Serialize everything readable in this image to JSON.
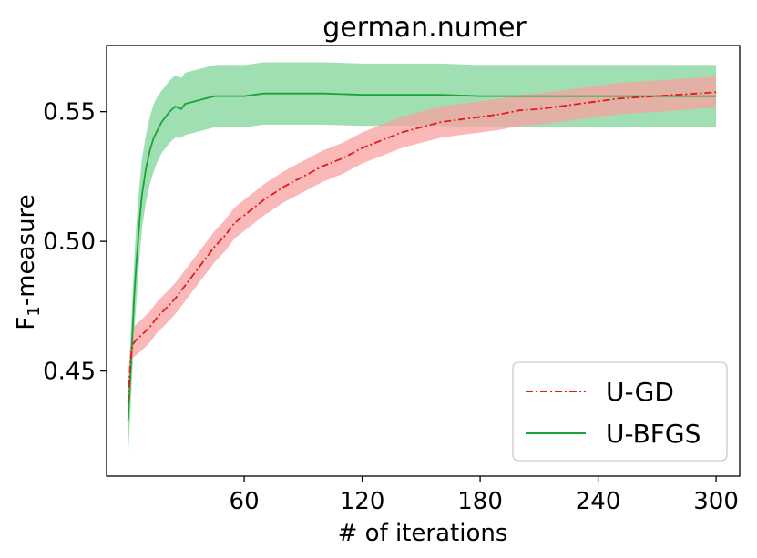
{
  "chart_data": {
    "type": "line",
    "title": "german.numer",
    "xlabel": "# of iterations",
    "ylabel": {
      "main": "F",
      "sub": "1",
      "rest": "-measure"
    },
    "xlim": [
      -10,
      312
    ],
    "ylim": [
      0.4095,
      0.5755
    ],
    "xticks": [
      60,
      120,
      180,
      240,
      300
    ],
    "xtick_labels": [
      "60",
      "120",
      "180",
      "240",
      "300"
    ],
    "yticks": [
      0.45,
      0.5,
      0.55
    ],
    "ytick_labels": [
      "0.45",
      "0.50",
      "0.55"
    ],
    "grid": false,
    "legend_position": "lower-right",
    "series": [
      {
        "name": "U-GD",
        "color": "#e41a1c",
        "band_color": "#f8a0a0",
        "line_style": "dashdot",
        "x": [
          1,
          2,
          3,
          5,
          8,
          12,
          16,
          20,
          25,
          30,
          35,
          40,
          45,
          50,
          55,
          60,
          70,
          80,
          90,
          100,
          110,
          120,
          130,
          140,
          150,
          160,
          170,
          180,
          190,
          200,
          210,
          220,
          230,
          240,
          250,
          260,
          270,
          280,
          290,
          300
        ],
        "y": [
          0.438,
          0.452,
          0.46,
          0.462,
          0.464,
          0.467,
          0.471,
          0.474,
          0.478,
          0.483,
          0.488,
          0.493,
          0.498,
          0.502,
          0.507,
          0.51,
          0.516,
          0.521,
          0.525,
          0.529,
          0.532,
          0.536,
          0.539,
          0.542,
          0.544,
          0.546,
          0.547,
          0.548,
          0.549,
          0.5505,
          0.551,
          0.552,
          0.553,
          0.554,
          0.555,
          0.5555,
          0.556,
          0.5565,
          0.557,
          0.5575
        ],
        "lower": [
          0.432,
          0.446,
          0.455,
          0.456,
          0.458,
          0.461,
          0.465,
          0.468,
          0.472,
          0.477,
          0.482,
          0.487,
          0.492,
          0.496,
          0.501,
          0.504,
          0.51,
          0.515,
          0.519,
          0.523,
          0.526,
          0.53,
          0.533,
          0.536,
          0.538,
          0.54,
          0.541,
          0.542,
          0.543,
          0.5445,
          0.545,
          0.546,
          0.547,
          0.548,
          0.549,
          0.5495,
          0.55,
          0.5505,
          0.551,
          0.5515
        ],
        "upper": [
          0.444,
          0.458,
          0.466,
          0.468,
          0.47,
          0.473,
          0.477,
          0.48,
          0.484,
          0.489,
          0.494,
          0.499,
          0.504,
          0.508,
          0.513,
          0.516,
          0.522,
          0.527,
          0.531,
          0.535,
          0.538,
          0.542,
          0.545,
          0.548,
          0.55,
          0.552,
          0.553,
          0.554,
          0.555,
          0.5565,
          0.557,
          0.558,
          0.559,
          0.56,
          0.561,
          0.5615,
          0.562,
          0.5625,
          0.563,
          0.5635
        ]
      },
      {
        "name": "U-BFGS",
        "color": "#1aa33a",
        "band_color": "#8fd9a4",
        "line_style": "solid",
        "x": [
          1,
          2,
          3,
          4,
          5,
          6,
          7,
          8,
          10,
          12,
          14,
          16,
          18,
          20,
          22,
          25,
          28,
          30,
          35,
          40,
          45,
          50,
          60,
          70,
          80,
          90,
          100,
          120,
          140,
          160,
          180,
          200,
          220,
          240,
          260,
          280,
          300
        ],
        "y": [
          0.431,
          0.446,
          0.462,
          0.478,
          0.49,
          0.5,
          0.51,
          0.518,
          0.528,
          0.535,
          0.54,
          0.543,
          0.546,
          0.548,
          0.55,
          0.552,
          0.551,
          0.553,
          0.554,
          0.555,
          0.556,
          0.556,
          0.556,
          0.557,
          0.557,
          0.557,
          0.557,
          0.5565,
          0.5565,
          0.5565,
          0.556,
          0.556,
          0.556,
          0.556,
          0.556,
          0.556,
          0.556
        ],
        "lower": [
          0.418,
          0.432,
          0.448,
          0.463,
          0.475,
          0.486,
          0.496,
          0.505,
          0.515,
          0.522,
          0.527,
          0.531,
          0.534,
          0.536,
          0.538,
          0.54,
          0.54,
          0.541,
          0.542,
          0.543,
          0.544,
          0.544,
          0.544,
          0.545,
          0.545,
          0.545,
          0.545,
          0.5445,
          0.5445,
          0.5445,
          0.544,
          0.544,
          0.544,
          0.544,
          0.544,
          0.544,
          0.544
        ],
        "upper": [
          0.444,
          0.46,
          0.476,
          0.492,
          0.505,
          0.515,
          0.524,
          0.532,
          0.541,
          0.548,
          0.553,
          0.556,
          0.558,
          0.56,
          0.562,
          0.564,
          0.563,
          0.565,
          0.566,
          0.567,
          0.568,
          0.568,
          0.568,
          0.569,
          0.569,
          0.569,
          0.569,
          0.5685,
          0.5685,
          0.5685,
          0.568,
          0.568,
          0.568,
          0.568,
          0.568,
          0.568,
          0.568
        ]
      }
    ]
  }
}
